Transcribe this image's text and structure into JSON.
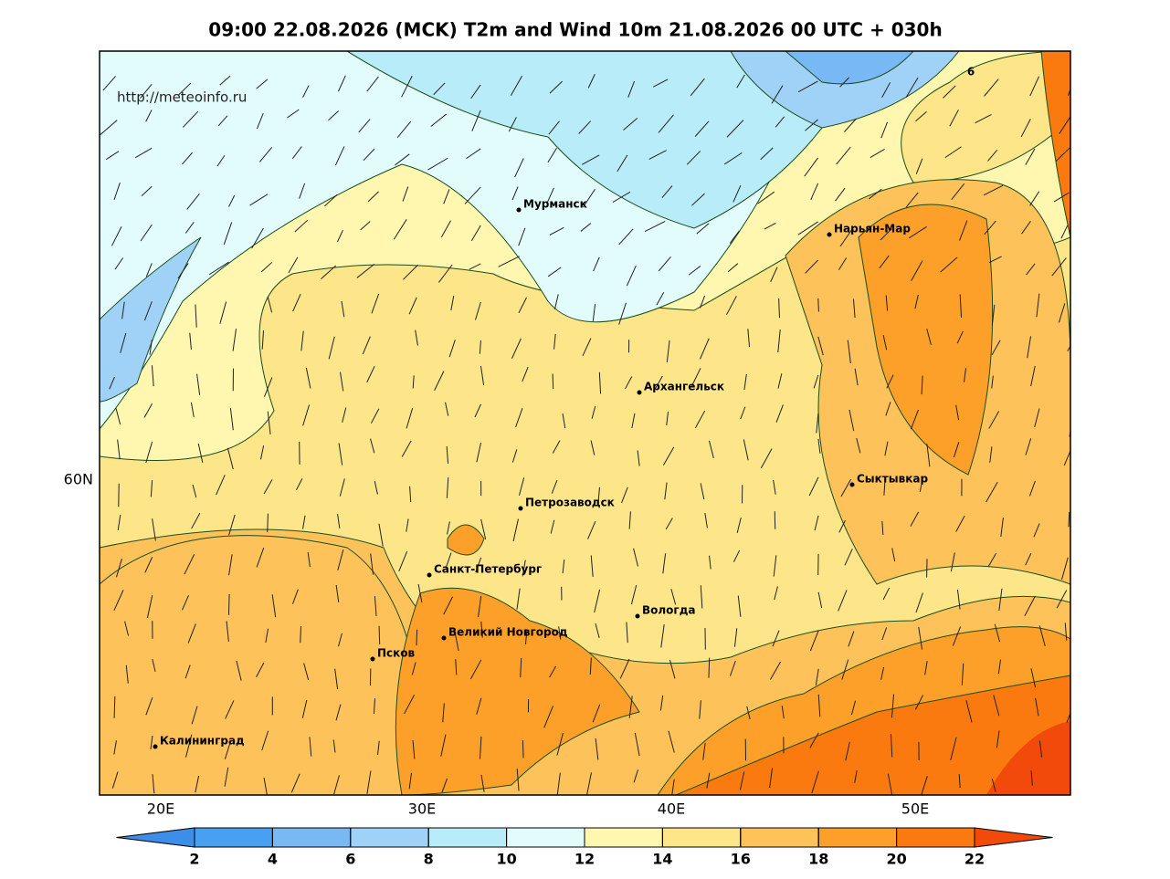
{
  "header": {
    "title": "09:00 22.08.2026 (MCK) T2m and Wind 10m 21.08.2026 00 UTC + 030h"
  },
  "map": {
    "source": "http://meteoinfo.ru",
    "cities": [
      "Мурманск",
      "Нарьян-Мар",
      "Архангельск",
      "Сыктывкар",
      "Петрозаводск",
      "Санкт-Петербург",
      "Вологда",
      "Великий Новгород",
      "Псков",
      "Калининград"
    ],
    "lon_labels": [
      "20E",
      "30E",
      "40E",
      "50E"
    ],
    "lat_labels": [
      "60N"
    ],
    "contour_label": "6"
  },
  "colorbar": {
    "ticks": [
      2,
      4,
      6,
      8,
      10,
      12,
      14,
      16,
      18,
      20,
      22
    ],
    "colors": [
      "#3d8ee8",
      "#4aa0f0",
      "#78b8f5",
      "#a0d2f8",
      "#b8ecf8",
      "#e2fcfc",
      "#fff6b0",
      "#fde58a",
      "#fdc25a",
      "#fda02a",
      "#fb7a10",
      "#f14a0a"
    ]
  }
}
